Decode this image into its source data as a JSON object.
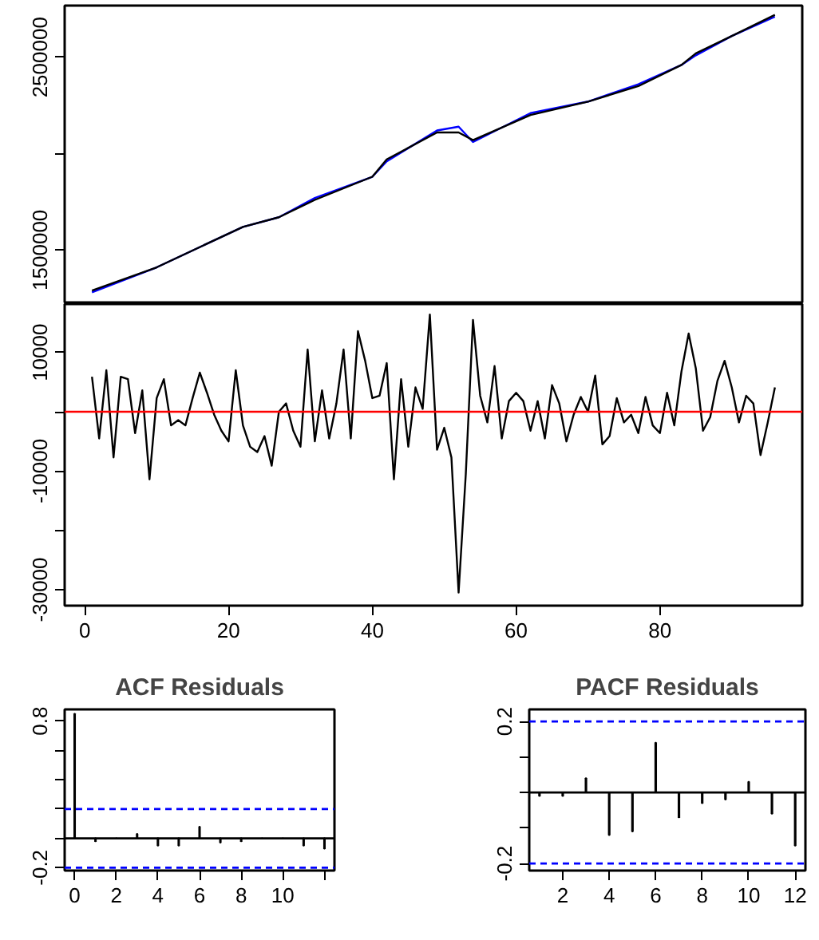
{
  "chart_data": [
    {
      "type": "line",
      "xlim": [
        -2.8,
        99.8
      ],
      "ylim": [
        1228000,
        2768000
      ],
      "yticks": [
        1500000,
        {
          "value": 2000000,
          "label": null
        },
        2500000
      ],
      "tick_labels": "y",
      "series": [
        {
          "color": "#0000ff",
          "x": [
            1,
            10,
            22,
            27,
            32,
            40,
            42,
            49,
            52,
            54,
            62,
            70,
            77,
            83,
            85,
            90,
            96
          ],
          "values": [
            1280000,
            1410000,
            1620000,
            1670000,
            1770000,
            1880000,
            1960000,
            2120000,
            2140000,
            2060000,
            2210000,
            2270000,
            2360000,
            2460000,
            2510000,
            2610000,
            2710000
          ]
        },
        {
          "color": "#000000",
          "x": [
            1,
            10,
            22,
            27,
            32,
            40,
            42,
            49,
            52,
            54,
            62,
            70,
            77,
            83,
            85,
            90,
            96
          ],
          "values": [
            1290000,
            1410000,
            1620000,
            1670000,
            1760000,
            1880000,
            1970000,
            2110000,
            2110000,
            2070000,
            2200000,
            2270000,
            2350000,
            2460000,
            2520000,
            2610000,
            2720000
          ]
        }
      ]
    },
    {
      "type": "line",
      "xlim": [
        -2.8,
        99.8
      ],
      "ylim": [
        -32700,
        18170
      ],
      "xticks": [
        0,
        20,
        40,
        60,
        80
      ],
      "yticks": [
        -30000,
        {
          "value": -20000,
          "label": null
        },
        -10000,
        {
          "value": 0,
          "label": null
        },
        10000
      ],
      "x": [
        1,
        2,
        3,
        4,
        5,
        6,
        7,
        8,
        9,
        10,
        11,
        12,
        13,
        14,
        15,
        16,
        17,
        18,
        19,
        20,
        21,
        22,
        23,
        24,
        25,
        26,
        27,
        28,
        29,
        30,
        31,
        32,
        33,
        34,
        35,
        36,
        37,
        38,
        39,
        40,
        41,
        42,
        43,
        44,
        45,
        46,
        47,
        48,
        49,
        50,
        51,
        52,
        53,
        54,
        55,
        56,
        57,
        58,
        59,
        60,
        61,
        62,
        63,
        64,
        65,
        66,
        67,
        68,
        69,
        70,
        71,
        72,
        73,
        74,
        75,
        76,
        77,
        78,
        79,
        80,
        81,
        82,
        83,
        84,
        85,
        86,
        87,
        88,
        89,
        90,
        91,
        92,
        93,
        94,
        95,
        96
      ],
      "series": [
        {
          "color": "#000000",
          "values": [
            5900,
            -4500,
            7000,
            -7700,
            5900,
            5500,
            -3600,
            3600,
            -11400,
            2300,
            5500,
            -2300,
            -1400,
            -2300,
            2300,
            6600,
            3200,
            -500,
            -3200,
            -5000,
            7000,
            -2300,
            -5900,
            -6800,
            -4100,
            -9100,
            0,
            1400,
            -3200,
            -5900,
            10500,
            -5000,
            3600,
            -4500,
            1400,
            10500,
            -4500,
            13600,
            8600,
            2300,
            2700,
            8200,
            -11400,
            5500,
            -5900,
            4100,
            500,
            16400,
            -6400,
            -2700,
            -7700,
            -30500,
            -10500,
            15500,
            2700,
            -1800,
            7700,
            -4500,
            1800,
            3200,
            1800,
            -3200,
            1800,
            -4500,
            4500,
            1400,
            -5000,
            -500,
            2500,
            0,
            6100,
            -5500,
            -4100,
            2300,
            -1800,
            -500,
            -3600,
            2500,
            -2300,
            -3600,
            3200,
            -2300,
            6800,
            13200,
            7300,
            -3200,
            -900,
            5200,
            8600,
            4100,
            -1800,
            2700,
            1400,
            -7300,
            -1800,
            4100
          ]
        }
      ],
      "ref_lines": [
        {
          "axis": "y",
          "value": 0,
          "color": "#ff0000"
        }
      ]
    },
    {
      "type": "bar",
      "title": "ACF Residuals",
      "xlim": [
        -0.48,
        12.48
      ],
      "ylim": [
        -0.22,
        0.88
      ],
      "xticks": [
        0,
        2,
        4,
        6,
        8,
        10,
        {
          "value": 12,
          "label": null
        }
      ],
      "yticks": [
        -0.2,
        {
          "value": 0,
          "label": null
        },
        {
          "value": 0.2,
          "label": null
        },
        {
          "value": 0.4,
          "label": null
        },
        {
          "value": 0.6,
          "label": null
        },
        0.8
      ],
      "x": [
        0,
        1,
        2,
        3,
        4,
        5,
        6,
        7,
        8,
        9,
        10,
        11,
        12
      ],
      "series": [
        {
          "color": "#000000",
          "values": [
            0.85,
            -0.02,
            null,
            0.03,
            -0.05,
            -0.05,
            0.08,
            -0.03,
            -0.02,
            null,
            null,
            -0.05,
            -0.07
          ]
        }
      ],
      "ref_lines": [
        {
          "axis": "y",
          "value": 0,
          "color": "#000000"
        },
        {
          "axis": "y",
          "value": 0.2,
          "color": "#0000ff",
          "line_style": "dashed"
        },
        {
          "axis": "y",
          "value": -0.2,
          "color": "#0000ff",
          "line_style": "dashed"
        }
      ]
    },
    {
      "type": "bar",
      "title": "PACF Residuals",
      "xlim": [
        0.56,
        12.44
      ],
      "ylim": [
        -0.22,
        0.234
      ],
      "xticks": [
        2,
        4,
        6,
        8,
        10,
        12
      ],
      "yticks": [
        -0.2,
        {
          "value": -0.1,
          "label": null
        },
        {
          "value": 0,
          "label": null
        },
        {
          "value": 0.1,
          "label": null
        },
        0.2
      ],
      "x": [
        1,
        2,
        3,
        4,
        5,
        6,
        7,
        8,
        9,
        10,
        11,
        12
      ],
      "series": [
        {
          "color": "#000000",
          "values": [
            -0.01,
            -0.01,
            0.04,
            -0.12,
            -0.11,
            0.14,
            -0.07,
            -0.03,
            -0.02,
            0.03,
            -0.06,
            -0.15
          ]
        }
      ],
      "ref_lines": [
        {
          "axis": "y",
          "value": 0,
          "color": "#000000"
        },
        {
          "axis": "y",
          "value": 0.2,
          "color": "#0000ff",
          "line_style": "dashed"
        },
        {
          "axis": "y",
          "value": -0.2,
          "color": "#0000ff",
          "line_style": "dashed"
        }
      ]
    }
  ]
}
